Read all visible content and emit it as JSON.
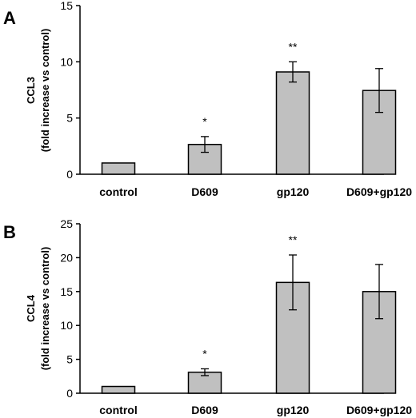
{
  "chart_data": [
    {
      "type": "bar",
      "panel": "A",
      "categories": [
        "control",
        "D609",
        "gp120",
        "D609+gp120"
      ],
      "values": [
        1.0,
        2.65,
        9.1,
        7.45
      ],
      "errors": [
        0,
        0.7,
        0.9,
        1.95
      ],
      "significance": [
        "",
        "*",
        "**",
        ""
      ],
      "ylabel_line1": "CCL3",
      "ylabel_line2": "(fold  increase vs control)",
      "ylim": [
        0,
        15
      ],
      "yticks": [
        "0",
        "5",
        "10",
        "15"
      ],
      "bar_color": "#c0c0c0"
    },
    {
      "type": "bar",
      "panel": "B",
      "categories": [
        "control",
        "D609",
        "gp120",
        "D609+gp120"
      ],
      "values": [
        1.0,
        3.1,
        16.35,
        15.0
      ],
      "errors": [
        0,
        0.5,
        4.05,
        4.0
      ],
      "significance": [
        "",
        "*",
        "**",
        ""
      ],
      "ylabel_line1": "CCL4",
      "ylabel_line2": "(fold  increase vs control)",
      "ylim": [
        0,
        25
      ],
      "yticks": [
        "0",
        "5",
        "10",
        "15",
        "20",
        "25"
      ],
      "bar_color": "#c0c0c0"
    }
  ]
}
